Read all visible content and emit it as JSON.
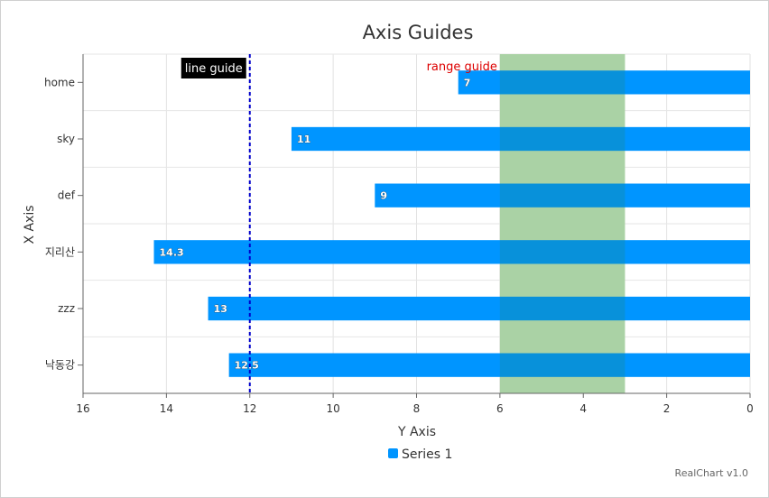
{
  "chart_data": {
    "type": "bar",
    "orientation": "horizontal",
    "title": "Axis Guides",
    "xlabel": "Y Axis",
    "ylabel": "X Axis",
    "categories": [
      "home",
      "sky",
      "def",
      "지리산",
      "zzz",
      "낙동강"
    ],
    "series": [
      {
        "name": "Series 1",
        "values": [
          7,
          11,
          9,
          14.3,
          13,
          12.5
        ],
        "color": "#0095ff"
      }
    ],
    "value_axis": {
      "min": 0,
      "max": 16,
      "reversed": true,
      "ticks": [
        16,
        14,
        12,
        10,
        8,
        6,
        4,
        2,
        0
      ]
    },
    "grid": true,
    "legend": "bottom",
    "guides": {
      "line": {
        "value": 12,
        "label": "line guide",
        "color": "#0000cc"
      },
      "range": {
        "from": 3,
        "to": 6,
        "label": "range guide",
        "label_color": "#dd0000",
        "fill": "#c6e4bf"
      }
    }
  },
  "credits": "RealChart v1.0"
}
